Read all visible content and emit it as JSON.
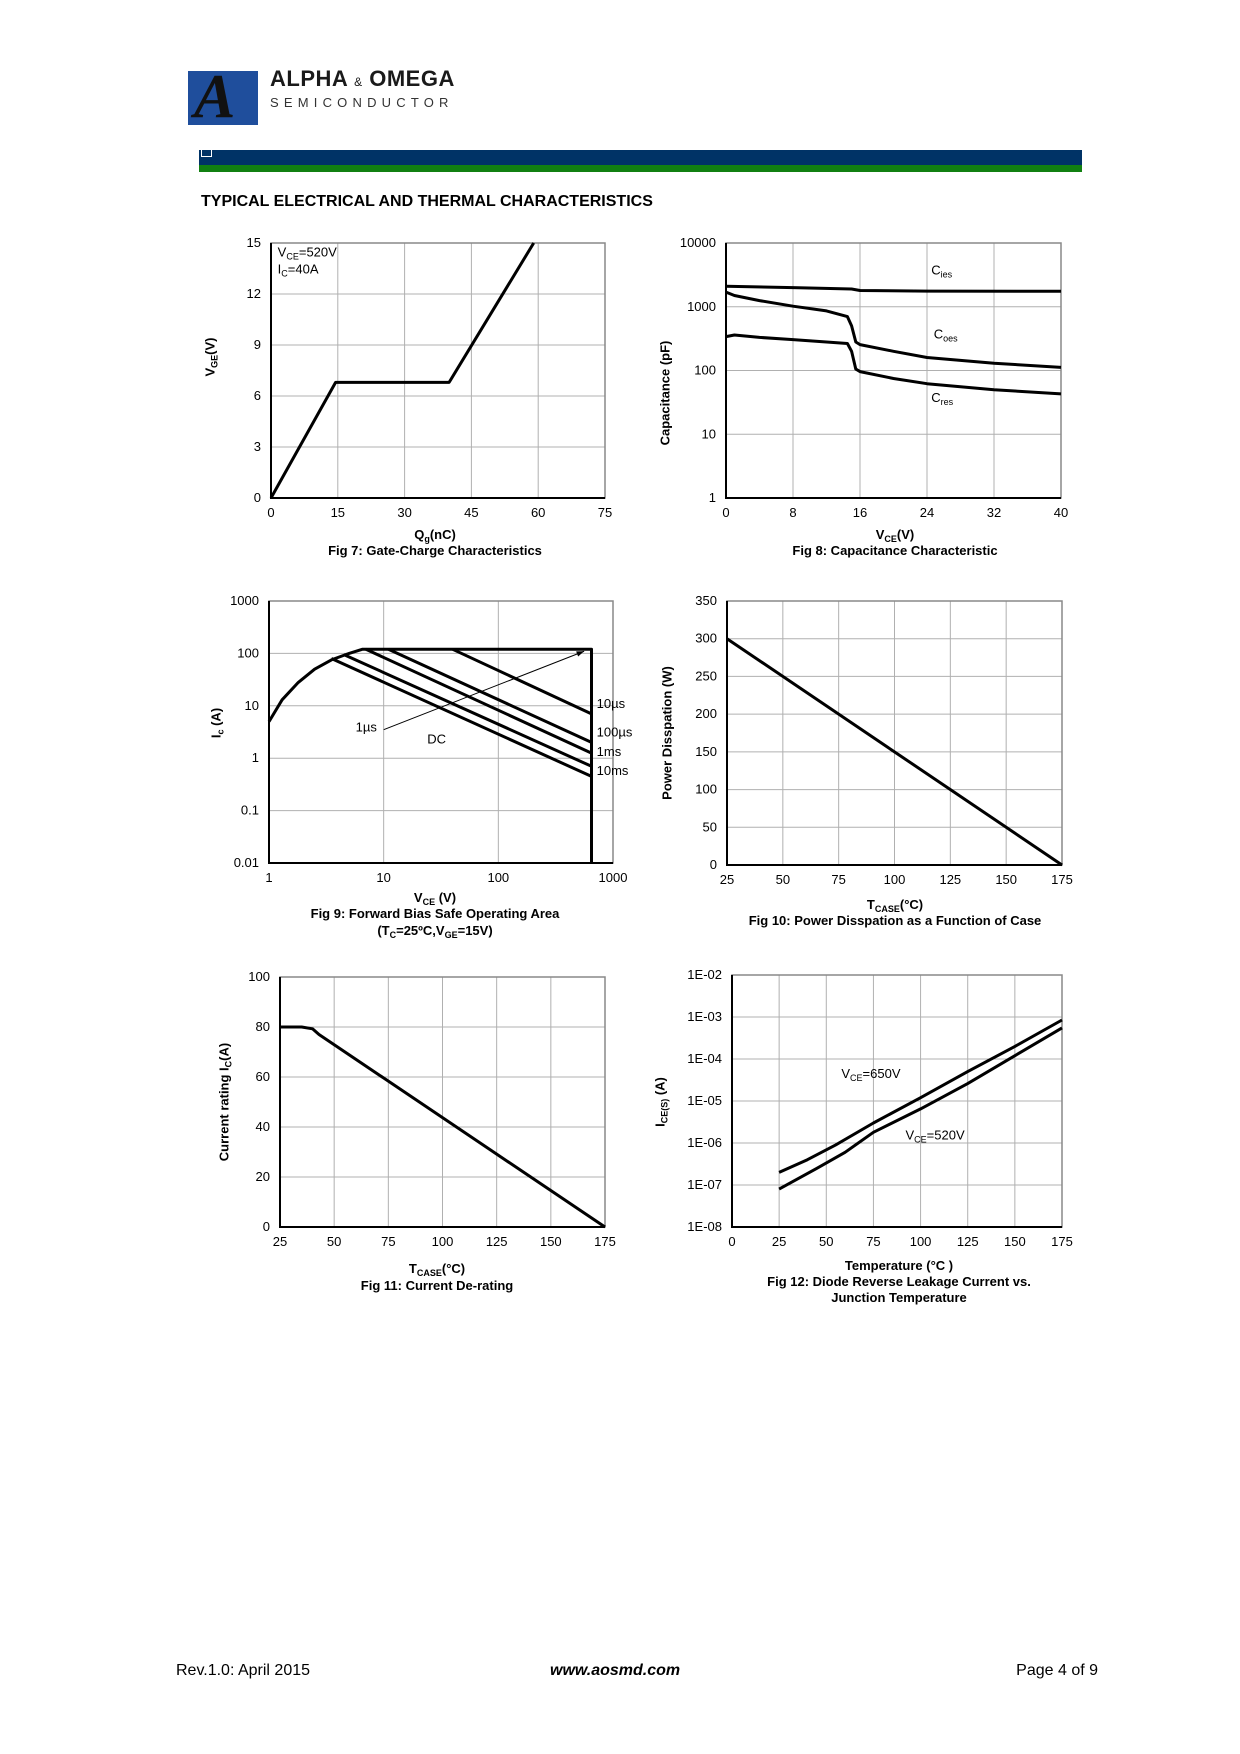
{
  "header": {
    "brand_title": "ALPHA",
    "brand_amp": "&",
    "brand_title2": "OMEGA",
    "brand_subtitle": "SEMICONDUCTOR",
    "logo_letter": "A",
    "colors": {
      "bar_blue": "#003366",
      "bar_green": "#118011",
      "logo_blue": "#1f4e9c"
    }
  },
  "section_title": "TYPICAL ELECTRICAL AND THERMAL CHARACTERISTICS",
  "chart_data": [
    {
      "type": "line",
      "title": "Fig 7: Gate-Charge Characteristics",
      "xlabel": {
        "t": "Q",
        "s": "g",
        "r": "(nC)"
      },
      "ylabel": {
        "t": "V",
        "s": "GE",
        "r": "(V)"
      },
      "xscale": "linear",
      "yscale": "linear",
      "xlim": [
        0,
        75
      ],
      "ylim": [
        0,
        15
      ],
      "xticks": [
        "0",
        "15",
        "30",
        "45",
        "60",
        "75"
      ],
      "yticks": [
        "0",
        "3",
        "6",
        "9",
        "12",
        "15"
      ],
      "grid": true,
      "series": [
        {
          "name": "VGE",
          "x": [
            0,
            14.5,
            40,
            59
          ],
          "y": [
            0,
            6.8,
            6.8,
            15
          ]
        }
      ],
      "annotations": [
        {
          "t": "V",
          "s": "CE",
          "r": "=520V",
          "x": 1.5,
          "y": 14.2
        },
        {
          "t": "I",
          "s": "C",
          "r": "=40A",
          "x": 1.5,
          "y": 13.2
        }
      ]
    },
    {
      "type": "line",
      "title": "Fig 8: Capacitance Characteristic",
      "xlabel": {
        "t": "V",
        "s": "CE",
        "r": "(V)"
      },
      "ylabel": {
        "t": "Capacitance (pF)",
        "s": "",
        "r": ""
      },
      "xscale": "linear",
      "yscale": "log",
      "xlim": [
        0,
        40
      ],
      "ylim": [
        1,
        10000
      ],
      "xticks": [
        "0",
        "8",
        "16",
        "24",
        "32",
        "40"
      ],
      "yticks": [
        "1",
        "10",
        "100",
        "1000",
        "10000"
      ],
      "grid": true,
      "series": [
        {
          "name": "Cies",
          "x": [
            0,
            8,
            15,
            16,
            24,
            40
          ],
          "y": [
            2100,
            2000,
            1900,
            1800,
            1760,
            1750
          ]
        },
        {
          "name": "Coes",
          "x": [
            0,
            1,
            4,
            8,
            12,
            14.5,
            15,
            15.5,
            16,
            20,
            24,
            32,
            40
          ],
          "y": [
            1700,
            1500,
            1250,
            1020,
            860,
            700,
            500,
            280,
            255,
            200,
            160,
            130,
            112
          ]
        },
        {
          "name": "Cres",
          "x": [
            0,
            1,
            4,
            8,
            12,
            14.5,
            15,
            15.5,
            16,
            20,
            24,
            32,
            40
          ],
          "y": [
            340,
            360,
            330,
            305,
            280,
            265,
            200,
            105,
            96,
            75,
            62,
            50,
            43
          ]
        }
      ],
      "annotations": [
        {
          "t": "C",
          "s": "ies",
          "r": "",
          "x": 24.5,
          "y": 3200
        },
        {
          "t": "C",
          "s": "oes",
          "r": "",
          "x": 24.8,
          "y": 320
        },
        {
          "t": "C",
          "s": "res",
          "r": "",
          "x": 24.5,
          "y": 32
        }
      ]
    },
    {
      "type": "line",
      "title": "Fig 9: Forward Bias Safe Operating Area",
      "subtitle": {
        "t": "(T",
        "s": "C",
        "r": "=25ºC,V",
        "s2": "GE",
        "r2": "=15V)"
      },
      "xlabel": {
        "t": "V",
        "s": "CE",
        "r": " (V)"
      },
      "ylabel": {
        "t": "I",
        "s": "c",
        "r": " (A)"
      },
      "xscale": "log",
      "yscale": "log",
      "xlim": [
        1,
        1000
      ],
      "ylim": [
        0.01,
        1000
      ],
      "xticks": [
        "1",
        "10",
        "100",
        "1000"
      ],
      "yticks": [
        "0.01",
        "0.1",
        "1",
        "10",
        "100",
        "1000"
      ],
      "grid": true,
      "series": [
        {
          "name": "boundary",
          "x": [
            1,
            1.3,
            1.8,
            2.5,
            3.5,
            5,
            6.5,
            650,
            650
          ],
          "y": [
            5,
            13,
            28,
            50,
            75,
            100,
            120,
            120,
            0.01
          ]
        },
        {
          "name": "10µs",
          "x": [
            40,
            650
          ],
          "y": [
            120,
            7
          ]
        },
        {
          "name": "100µs",
          "x": [
            11,
            650
          ],
          "y": [
            120,
            2
          ]
        },
        {
          "name": "1ms",
          "x": [
            7,
            650
          ],
          "y": [
            120,
            1.25
          ]
        },
        {
          "name": "10ms",
          "x": [
            4.5,
            650
          ],
          "y": [
            95,
            0.7
          ]
        },
        {
          "name": "DC",
          "x": [
            3.5,
            650
          ],
          "y": [
            80,
            0.45
          ]
        }
      ],
      "arrow": {
        "x": [
          10,
          560
        ],
        "y": [
          3.5,
          110
        ]
      },
      "annotations": [
        {
          "t": "10µs",
          "s": "",
          "r": "",
          "x": 720,
          "y": 9
        },
        {
          "t": "100µs",
          "s": "",
          "r": "",
          "x": 720,
          "y": 2.6
        },
        {
          "t": "1ms",
          "s": "",
          "r": "",
          "x": 720,
          "y": 1.1
        },
        {
          "t": "10ms",
          "s": "",
          "r": "",
          "x": 720,
          "y": 0.48
        },
        {
          "t": "1µs",
          "s": "",
          "r": "",
          "x": 5.7,
          "y": 3.2
        },
        {
          "t": "DC",
          "s": "",
          "r": "",
          "x": 24,
          "y": 1.9
        }
      ]
    },
    {
      "type": "line",
      "title": "Fig 10: Power Disspation as a Function of Case",
      "xlabel": {
        "t": "T",
        "s": "CASE",
        "r": "(°C)"
      },
      "ylabel": {
        "t": "Power Disspation (W)",
        "s": "",
        "r": ""
      },
      "xscale": "linear",
      "yscale": "linear",
      "xlim": [
        25,
        175
      ],
      "ylim": [
        0,
        350
      ],
      "xticks": [
        "25",
        "50",
        "75",
        "100",
        "125",
        "150",
        "175"
      ],
      "yticks": [
        "0",
        "50",
        "100",
        "150",
        "200",
        "250",
        "300",
        "350"
      ],
      "grid": true,
      "series": [
        {
          "name": "Pd",
          "x": [
            25,
            175
          ],
          "y": [
            300,
            0
          ]
        }
      ],
      "annotations": []
    },
    {
      "type": "line",
      "title": "Fig 11: Current De-rating",
      "xlabel": {
        "t": "T",
        "s": "CASE",
        "r": "(°C)"
      },
      "ylabel": {
        "t": "Current rating I",
        "s": "C",
        "r": "(A)"
      },
      "xscale": "linear",
      "yscale": "linear",
      "xlim": [
        25,
        175
      ],
      "ylim": [
        0,
        100
      ],
      "xticks": [
        "25",
        "50",
        "75",
        "100",
        "125",
        "150",
        "175"
      ],
      "yticks": [
        "0",
        "20",
        "40",
        "60",
        "80",
        "100"
      ],
      "grid": true,
      "series": [
        {
          "name": "Ic",
          "x": [
            25,
            35,
            40,
            43,
            175
          ],
          "y": [
            80,
            80,
            79.3,
            77,
            0
          ]
        }
      ],
      "annotations": []
    },
    {
      "type": "line",
      "title": "Fig 12: Diode Reverse Leakage Current vs.",
      "title2": "Junction Temperature",
      "xlabel": {
        "t": "Temperature (°C )",
        "s": "",
        "r": ""
      },
      "ylabel": {
        "t": "I",
        "s": "CE(S)",
        "r": " (A)"
      },
      "xscale": "linear",
      "yscale": "log",
      "xlim": [
        0,
        175
      ],
      "ylim": [
        1e-08,
        0.01
      ],
      "xticks": [
        "0",
        "25",
        "50",
        "75",
        "100",
        "125",
        "150",
        "175"
      ],
      "yticks": [
        "1E-08",
        "1E-07",
        "1E-06",
        "1E-05",
        "1E-04",
        "1E-03",
        "1E-02"
      ],
      "grid": true,
      "series": [
        {
          "name": "VCE=650V",
          "x": [
            25,
            40,
            55,
            75,
            100,
            125,
            150,
            175
          ],
          "y": [
            2e-07,
            4e-07,
            9e-07,
            3e-06,
            1.2e-05,
            5e-05,
            0.0002,
            0.00085
          ]
        },
        {
          "name": "VCE=520V",
          "x": [
            25,
            45,
            60,
            75,
            100,
            125,
            150,
            175
          ],
          "y": [
            8e-08,
            2.5e-07,
            6e-07,
            1.8e-06,
            6.5e-06,
            2.6e-05,
            0.00012,
            0.00055
          ]
        }
      ],
      "annotations": [
        {
          "t": "V",
          "s": "CE",
          "r": "=650V",
          "x": 58,
          "y": 3.5e-05
        },
        {
          "t": "V",
          "s": "CE",
          "r": "=520V",
          "x": 92,
          "y": 1.2e-06
        }
      ]
    }
  ],
  "footer": {
    "revision": "Rev.1.0: April 2015",
    "website": "www.aosmd.com",
    "page": "Page 4 of 9"
  }
}
